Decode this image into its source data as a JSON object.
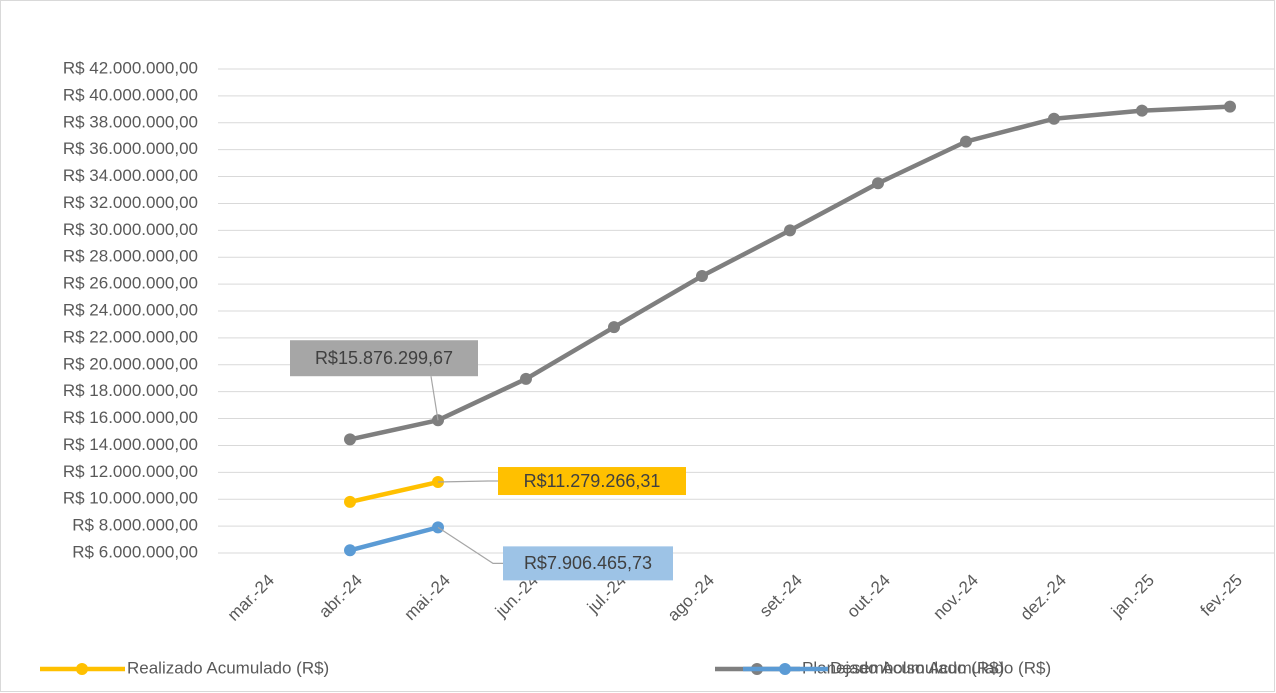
{
  "chart_data": {
    "type": "line",
    "categories": [
      "mar.-24",
      "abr.-24",
      "mai.-24",
      "jun.-24",
      "jul.-24",
      "ago.-24",
      "set.-24",
      "out.-24",
      "nov.-24",
      "dez.-24",
      "jan.-25",
      "fev.-25"
    ],
    "series": [
      {
        "name": "Realizado Acumulado (R$)",
        "color": "#ffc000",
        "values": [
          null,
          9800000,
          11279266.31,
          null,
          null,
          null,
          null,
          null,
          null,
          null,
          null,
          null
        ],
        "value_labels": [
          null,
          null,
          "R$11.279.266,31",
          null,
          null,
          null,
          null,
          null,
          null,
          null,
          null,
          null
        ]
      },
      {
        "name": "Planejado Acumulado (R$)",
        "color": "#7f7f7f",
        "values": [
          null,
          14450000,
          15876299.67,
          18950000,
          22800000,
          26600000,
          30000000,
          33500000,
          36600000,
          38300000,
          38900000,
          39200000
        ],
        "value_labels": [
          null,
          null,
          "R$15.876.299,67",
          null,
          null,
          null,
          null,
          null,
          null,
          null,
          null,
          null
        ]
      },
      {
        "name": "Desembolso Acumulado (R$)",
        "color": "#5b9bd5",
        "values": [
          null,
          6200000,
          7906465.73,
          null,
          null,
          null,
          null,
          null,
          null,
          null,
          null,
          null
        ],
        "value_labels": [
          null,
          null,
          "R$7.906.465,73",
          null,
          null,
          null,
          null,
          null,
          null,
          null,
          null,
          null
        ]
      }
    ],
    "ylim": [
      6000000,
      42000000
    ],
    "yticks": [
      {
        "value": 6000000,
        "label": "R$ 6.000.000,00"
      },
      {
        "value": 8000000,
        "label": "R$ 8.000.000,00"
      },
      {
        "value": 10000000,
        "label": "R$ 10.000.000,00"
      },
      {
        "value": 12000000,
        "label": "R$ 12.000.000,00"
      },
      {
        "value": 14000000,
        "label": "R$ 14.000.000,00"
      },
      {
        "value": 16000000,
        "label": "R$ 16.000.000,00"
      },
      {
        "value": 18000000,
        "label": "R$ 18.000.000,00"
      },
      {
        "value": 20000000,
        "label": "R$ 20.000.000,00"
      },
      {
        "value": 22000000,
        "label": "R$ 22.000.000,00"
      },
      {
        "value": 24000000,
        "label": "R$ 24.000.000,00"
      },
      {
        "value": 26000000,
        "label": "R$ 26.000.000,00"
      },
      {
        "value": 28000000,
        "label": "R$ 28.000.000,00"
      },
      {
        "value": 30000000,
        "label": "R$ 30.000.000,00"
      },
      {
        "value": 32000000,
        "label": "R$ 32.000.000,00"
      },
      {
        "value": 34000000,
        "label": "R$ 34.000.000,00"
      },
      {
        "value": 36000000,
        "label": "R$ 36.000.000,00"
      },
      {
        "value": 38000000,
        "label": "R$ 38.000.000,00"
      },
      {
        "value": 40000000,
        "label": "R$ 40.000.000,00"
      },
      {
        "value": 42000000,
        "label": "R$ 42.000.000,00"
      }
    ],
    "grid": true,
    "legend": "bottom"
  }
}
